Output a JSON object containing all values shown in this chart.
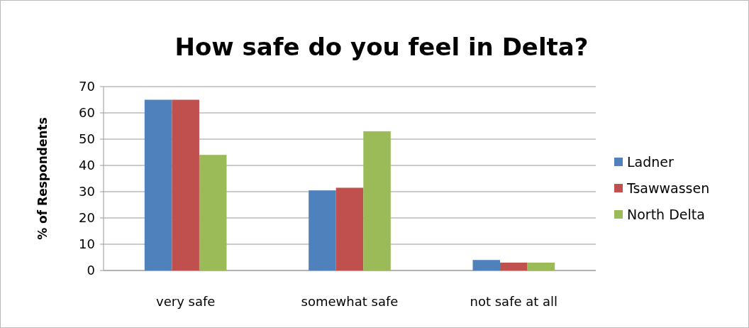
{
  "chart_data": {
    "type": "bar",
    "title": "How safe do you feel in Delta?",
    "ylabel": "% of Respondents",
    "categories": [
      "very safe",
      "somewhat safe",
      "not safe at all"
    ],
    "series": [
      {
        "name": "Ladner",
        "color": "#4f81bd",
        "values": [
          65,
          30.5,
          4
        ]
      },
      {
        "name": "Tsawwassen",
        "color": "#c0504d",
        "values": [
          65,
          31.5,
          3
        ]
      },
      {
        "name": "North Delta",
        "color": "#9bbb59",
        "values": [
          44,
          53,
          3
        ]
      }
    ],
    "ylim": [
      0,
      70
    ],
    "yticks": [
      0,
      10,
      20,
      30,
      40,
      50,
      60,
      70
    ],
    "grid": "y",
    "legend": "right"
  }
}
